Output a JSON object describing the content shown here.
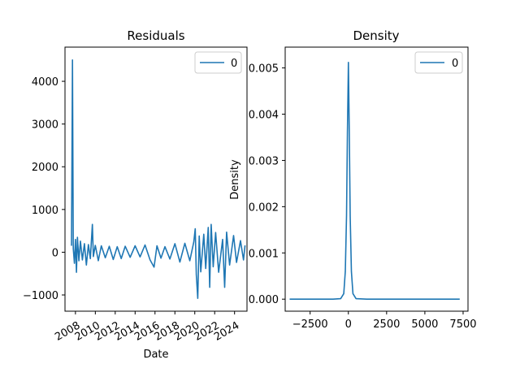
{
  "chart_data": [
    {
      "type": "line",
      "title": "Residuals",
      "xlabel": "Date",
      "ylabel": "",
      "x_tick_labels": [
        "2008",
        "2010",
        "2012",
        "2014",
        "2016",
        "2018",
        "2020",
        "2022",
        "2024"
      ],
      "y_tick_labels": [
        "−1000",
        "0",
        "1000",
        "2000",
        "3000",
        "4000"
      ],
      "y_ticks": [
        -1000,
        0,
        1000,
        2000,
        3000,
        4000
      ],
      "xlim": [
        2006.95,
        2025.25
      ],
      "ylim": [
        -1380,
        4800
      ],
      "legend": {
        "entries": [
          "0"
        ],
        "placement": "upper right"
      },
      "grid": false,
      "series": [
        {
          "name": "0",
          "color": "#1f77b4",
          "points": [
            [
              2007.6,
              150
            ],
            [
              2007.7,
              4500
            ],
            [
              2007.78,
              80
            ],
            [
              2007.9,
              -260
            ],
            [
              2008.0,
              300
            ],
            [
              2008.1,
              -470
            ],
            [
              2008.2,
              350
            ],
            [
              2008.35,
              -200
            ],
            [
              2008.5,
              260
            ],
            [
              2008.7,
              -180
            ],
            [
              2008.9,
              200
            ],
            [
              2009.1,
              -300
            ],
            [
              2009.3,
              180
            ],
            [
              2009.5,
              -150
            ],
            [
              2009.7,
              650
            ],
            [
              2009.8,
              -100
            ],
            [
              2010.0,
              160
            ],
            [
              2010.3,
              -200
            ],
            [
              2010.6,
              150
            ],
            [
              2011.0,
              -130
            ],
            [
              2011.4,
              140
            ],
            [
              2011.8,
              -170
            ],
            [
              2012.2,
              130
            ],
            [
              2012.6,
              -150
            ],
            [
              2013.0,
              140
            ],
            [
              2013.5,
              -120
            ],
            [
              2014.0,
              150
            ],
            [
              2014.5,
              -110
            ],
            [
              2015.0,
              170
            ],
            [
              2015.5,
              -180
            ],
            [
              2015.9,
              -350
            ],
            [
              2016.2,
              150
            ],
            [
              2016.6,
              -140
            ],
            [
              2017.0,
              130
            ],
            [
              2017.5,
              -160
            ],
            [
              2018.0,
              200
            ],
            [
              2018.5,
              -230
            ],
            [
              2019.0,
              210
            ],
            [
              2019.5,
              -200
            ],
            [
              2019.9,
              240
            ],
            [
              2020.05,
              550
            ],
            [
              2020.15,
              -520
            ],
            [
              2020.3,
              -1080
            ],
            [
              2020.45,
              380
            ],
            [
              2020.6,
              -460
            ],
            [
              2020.9,
              420
            ],
            [
              2021.1,
              -380
            ],
            [
              2021.35,
              580
            ],
            [
              2021.5,
              -820
            ],
            [
              2021.65,
              650
            ],
            [
              2021.85,
              -340
            ],
            [
              2022.1,
              460
            ],
            [
              2022.4,
              -470
            ],
            [
              2022.8,
              300
            ],
            [
              2023.0,
              -820
            ],
            [
              2023.2,
              470
            ],
            [
              2023.5,
              -300
            ],
            [
              2023.9,
              390
            ],
            [
              2024.2,
              -240
            ],
            [
              2024.6,
              270
            ],
            [
              2024.9,
              -180
            ],
            [
              2025.05,
              160
            ]
          ]
        }
      ]
    },
    {
      "type": "line",
      "title": "Density",
      "xlabel": "",
      "ylabel": "Density",
      "x_tick_labels": [
        "−2500",
        "0",
        "2500",
        "5000",
        "7500"
      ],
      "x_ticks": [
        -2500,
        0,
        2500,
        5000,
        7500
      ],
      "y_tick_labels": [
        "0.000",
        "0.001",
        "0.002",
        "0.003",
        "0.004",
        "0.005"
      ],
      "y_ticks": [
        0,
        0.001,
        0.002,
        0.003,
        0.004,
        0.005
      ],
      "xlim": [
        -4130,
        7820
      ],
      "ylim": [
        -0.00026,
        0.00545
      ],
      "legend": {
        "entries": [
          "0"
        ],
        "placement": "upper right"
      },
      "grid": false,
      "series": [
        {
          "name": "0",
          "color": "#1f77b4",
          "points": [
            [
              -3840,
              0
            ],
            [
              -1000,
              0
            ],
            [
              -500,
              1e-05
            ],
            [
              -300,
              0.00012
            ],
            [
              -200,
              0.0006
            ],
            [
              -120,
              0.0018
            ],
            [
              -60,
              0.0036
            ],
            [
              0,
              0.00512
            ],
            [
              60,
              0.0036
            ],
            [
              120,
              0.0018
            ],
            [
              200,
              0.0006
            ],
            [
              300,
              0.00012
            ],
            [
              500,
              1e-05
            ],
            [
              1200,
              0
            ],
            [
              7280,
              0
            ]
          ]
        }
      ]
    }
  ]
}
